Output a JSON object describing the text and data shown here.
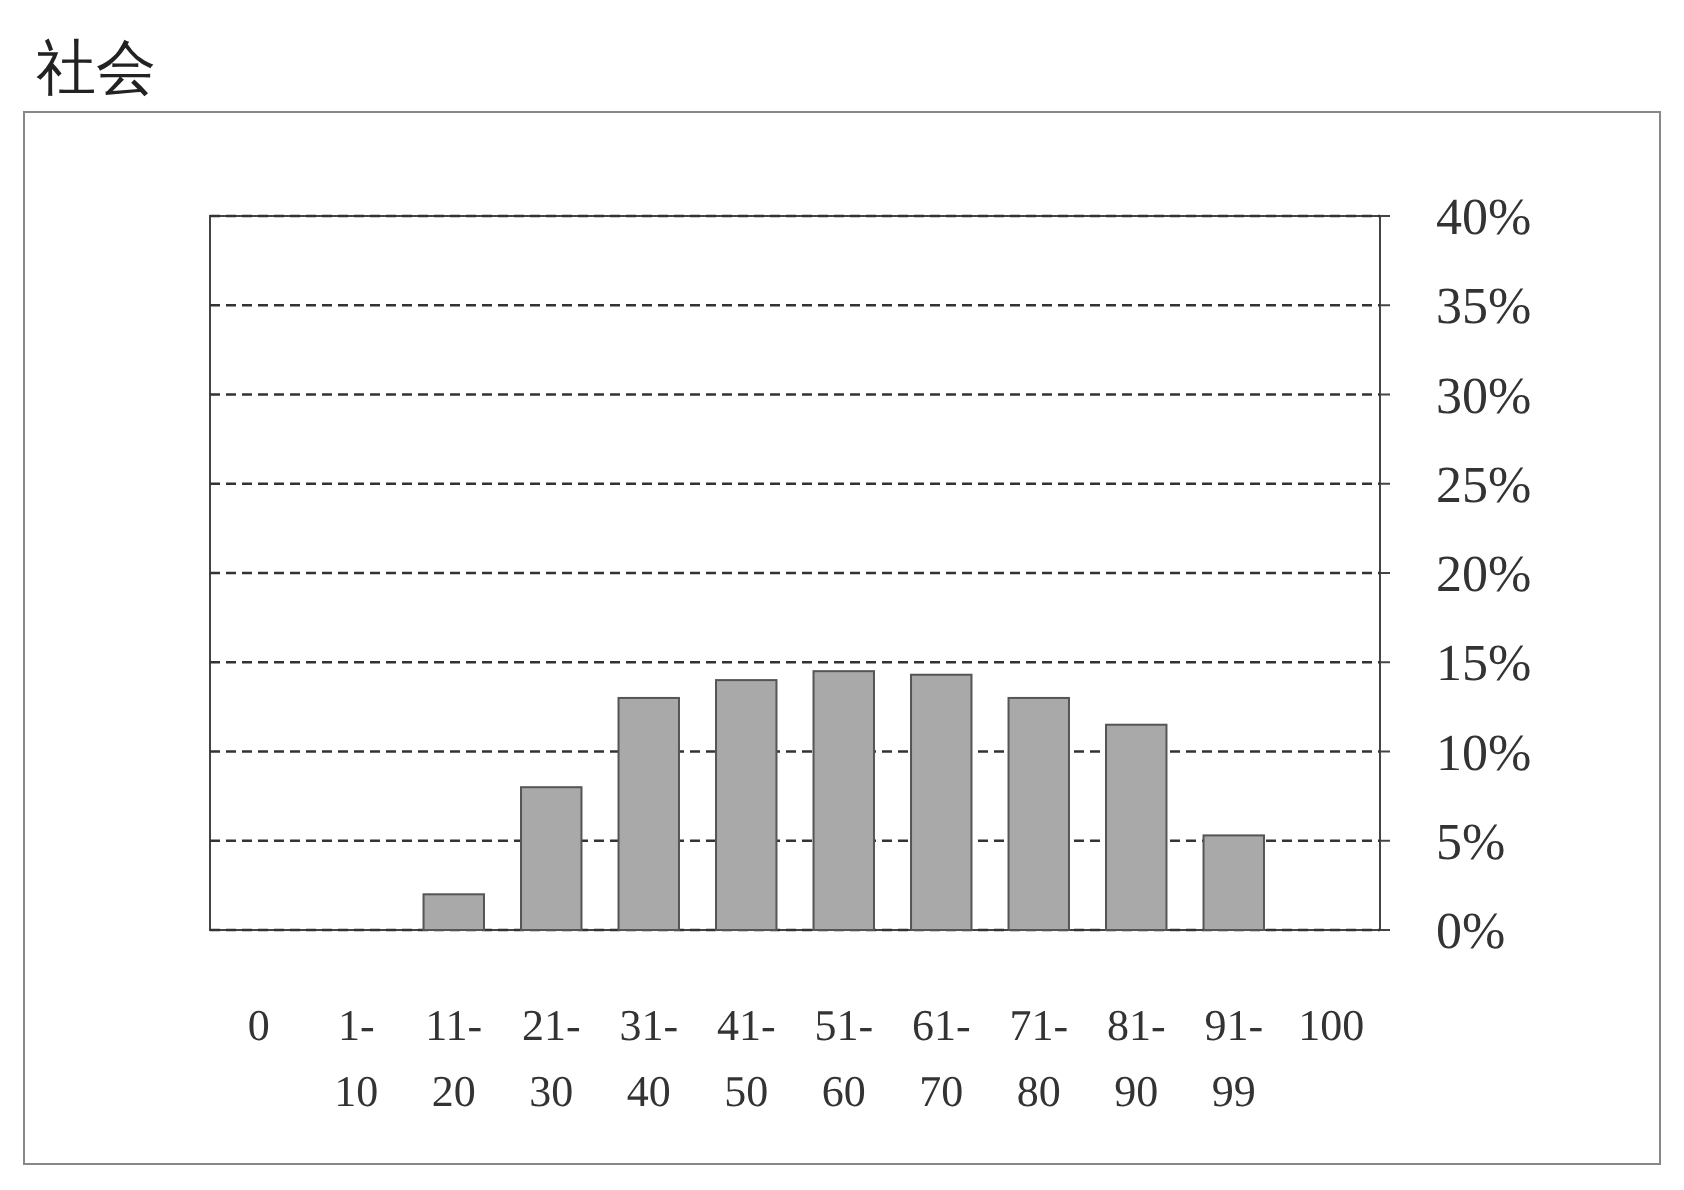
{
  "chart_data": {
    "type": "bar",
    "title": "社会",
    "categories": [
      "0",
      "1- 10",
      "11- 20",
      "21- 30",
      "31- 40",
      "41- 50",
      "51- 60",
      "61- 70",
      "71- 80",
      "81- 90",
      "91- 99",
      "100"
    ],
    "values": [
      0,
      0,
      2,
      8,
      13,
      14,
      14.5,
      14.3,
      13,
      11.5,
      5.3,
      0
    ],
    "color": "#a9a9a9",
    "ylim": [
      0,
      40
    ],
    "yticks": [
      {
        "value": 0,
        "label": "0%"
      },
      {
        "value": 5,
        "label": "5%"
      },
      {
        "value": 10,
        "label": "10%"
      },
      {
        "value": 15,
        "label": "15%"
      },
      {
        "value": 20,
        "label": "20%"
      },
      {
        "value": 25,
        "label": "25%"
      },
      {
        "value": 30,
        "label": "30%"
      },
      {
        "value": 35,
        "label": "35%"
      },
      {
        "value": 40,
        "label": "40%"
      }
    ],
    "grid": "y"
  }
}
